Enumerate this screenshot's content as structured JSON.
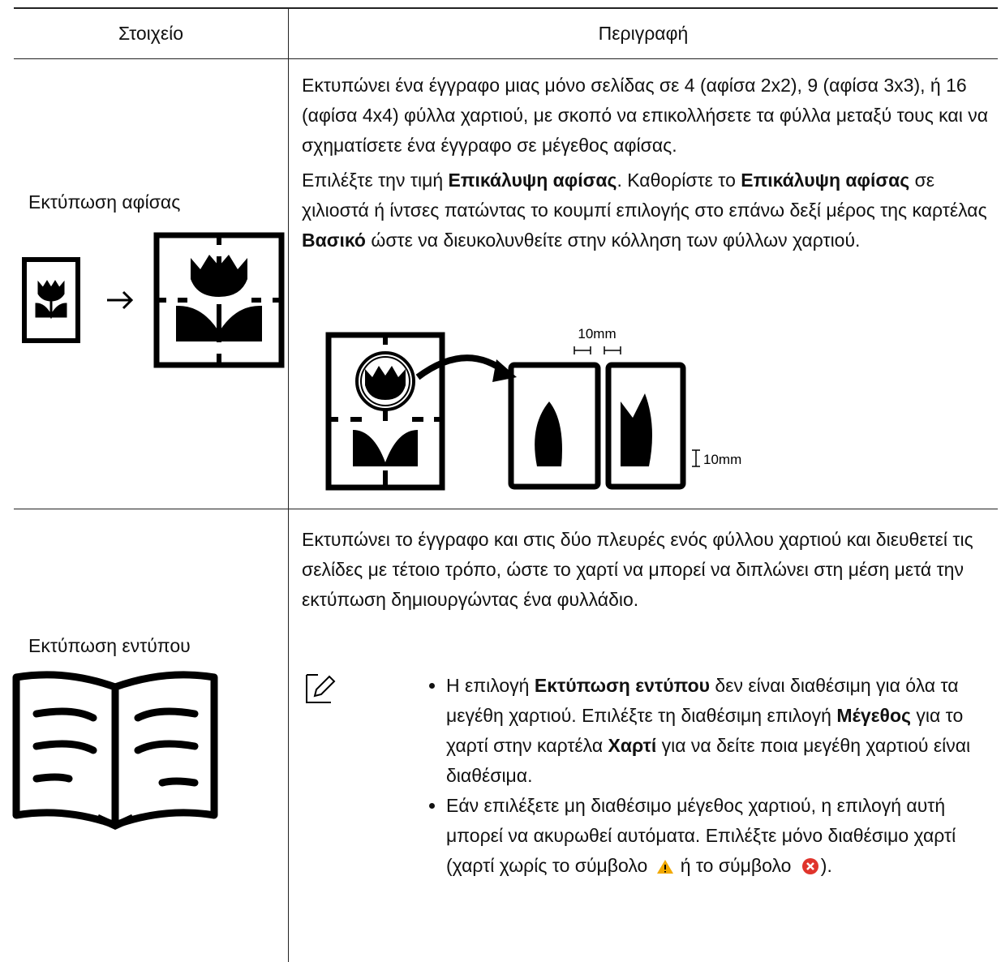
{
  "table": {
    "headers": [
      "Στοιχείο",
      "Περιγραφή"
    ],
    "rows": [
      {
        "item": "Εκτύπωση αφίσας",
        "description": {
          "paragraphs": [
            {
              "segments": [
                "Εκτυπώνει ένα έγγραφο μιας μόνο σελίδας σε 4 (αφίσα 2x2), 9 (αφίσα 3x3), ή 16 (αφίσα 4x4) φύλλα χαρτιού, με σκοπό να επικολλήσετε τα φύλλα μεταξύ τους και να σχηματίσετε ένα έγγραφο σε μέγεθος αφίσας."
              ]
            },
            {
              "segments": [
                "Επιλέξτε την τιμή ",
                "Επικάλυψη αφίσας",
                ". Καθορίστε το ",
                "Επικάλυψη αφίσας",
                " σε χιλιοστά ή ίντσες πατώντας το κουμπί επιλογής στο επάνω δεξί μέρος της καρτέλας ",
                "Βασικό",
                " ώστε να διευκολυνθείτε στην κόλληση των φύλλων χαρτιού."
              ]
            }
          ],
          "diagram_labels": [
            "10mm",
            "10mm"
          ]
        }
      },
      {
        "item": "Εκτύπωση εντύπου",
        "description": {
          "paragraphs": [
            {
              "segments": [
                "Εκτυπώνει το έγγραφο και στις δύο πλευρές ενός φύλλου χαρτιού και διευθετεί τις σελίδες με τέτοιο τρόπο, ώστε το χαρτί να μπορεί να διπλώνει στη μέση μετά την εκτύπωση δημιουργώντας ένα φυλλάδιο."
              ]
            }
          ],
          "notes": [
            {
              "segments": [
                "Η επιλογή ",
                "Εκτύπωση εντύπου",
                " δεν είναι διαθέσιμη για όλα τα μεγέθη χαρτιού. Επιλέξτε τη διαθέσιμη επιλογή ",
                "Μέγεθος",
                " για το χαρτί στην καρτέλα ",
                "Χαρτί",
                " για να δείτε ποια μεγέθη χαρτιού είναι διαθέσιμα."
              ]
            },
            {
              "segments": [
                "Εάν επιλέξετε μη διαθέσιμο μέγεθος χαρτιού, η επιλογή αυτή μπορεί να ακυρωθεί αυτόματα. Επιλέξτε μόνο διαθέσιμο χαρτί (χαρτί χωρίς το σύμβολο ",
                "ή το σύμβολο ",
                ")."
              ]
            }
          ]
        }
      }
    ]
  }
}
